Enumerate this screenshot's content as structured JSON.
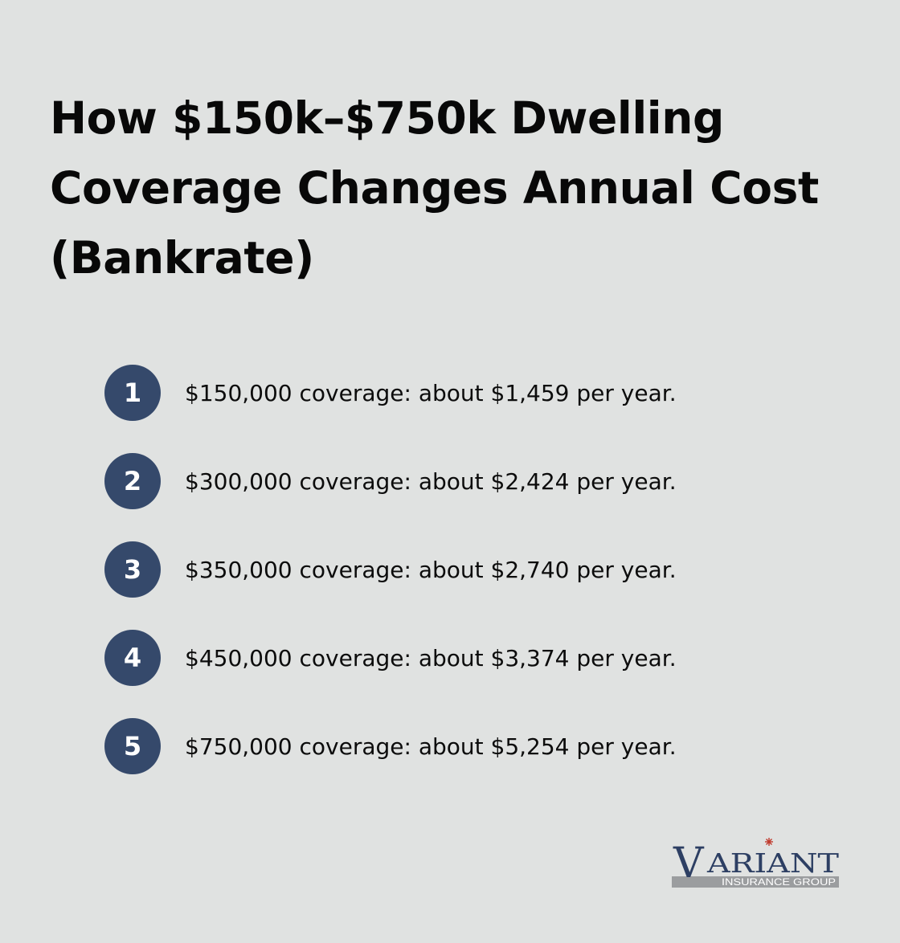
{
  "title": "How $150k–$750k Dwelling Coverage Changes Annual Cost (Bankrate)",
  "items": [
    {
      "number": "1",
      "text": "$150,000 coverage: about $1,459 per year."
    },
    {
      "number": "2",
      "text": "$300,000 coverage: about $2,424 per year."
    },
    {
      "number": "3",
      "text": "$350,000 coverage: about $2,740 per year."
    },
    {
      "number": "4",
      "text": "$450,000 coverage: about $3,374 per year."
    },
    {
      "number": "5",
      "text": "$750,000 coverage: about $5,254 per year."
    }
  ],
  "logo": {
    "initial": "V",
    "name_rest": "ARIANT",
    "tagline": "INSURANCE GROUP",
    "colors": {
      "navy": "#2d3f63",
      "gray": "#9b9d9f",
      "star": "#c0392b"
    }
  },
  "colors": {
    "background": "#e0e2e1",
    "badge": "#35496b",
    "text": "#0a0a0a"
  }
}
